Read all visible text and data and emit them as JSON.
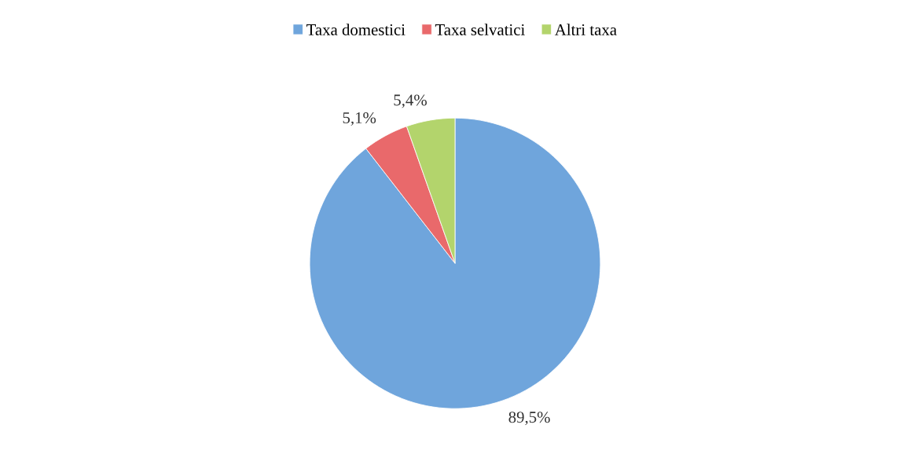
{
  "chart_data": {
    "type": "pie",
    "categories": [
      "Taxa domestici",
      "Taxa selvatici",
      "Altri taxa"
    ],
    "values": [
      89.5,
      5.1,
      5.4
    ],
    "value_labels": [
      "89,5%",
      "5,1%",
      "5,4%"
    ],
    "colors": [
      "#6fa5dc",
      "#e9696b",
      "#b3d46c"
    ],
    "legend": "top"
  }
}
